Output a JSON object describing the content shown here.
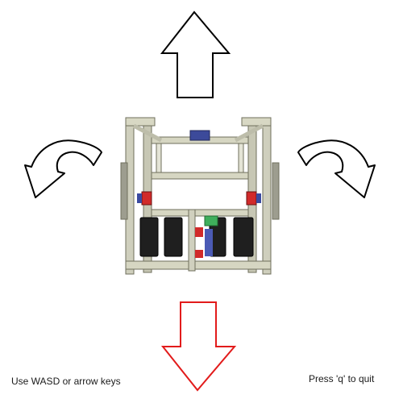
{
  "controls": {
    "forward_arrow": {
      "active": false,
      "color": "#000000",
      "icon": "arrow-up-icon"
    },
    "backward_arrow": {
      "active": true,
      "color": "#e21b1b",
      "icon": "arrow-down-icon"
    },
    "rotate_left_arrow": {
      "active": false,
      "color": "#000000",
      "icon": "rotate-left-icon"
    },
    "rotate_right_arrow": {
      "active": false,
      "color": "#000000",
      "icon": "rotate-right-icon"
    }
  },
  "robot": {
    "icon": "robot-chassis-icon"
  },
  "hints": {
    "movement": "Use WASD or arrow keys",
    "quit": "Press 'q' to quit"
  }
}
